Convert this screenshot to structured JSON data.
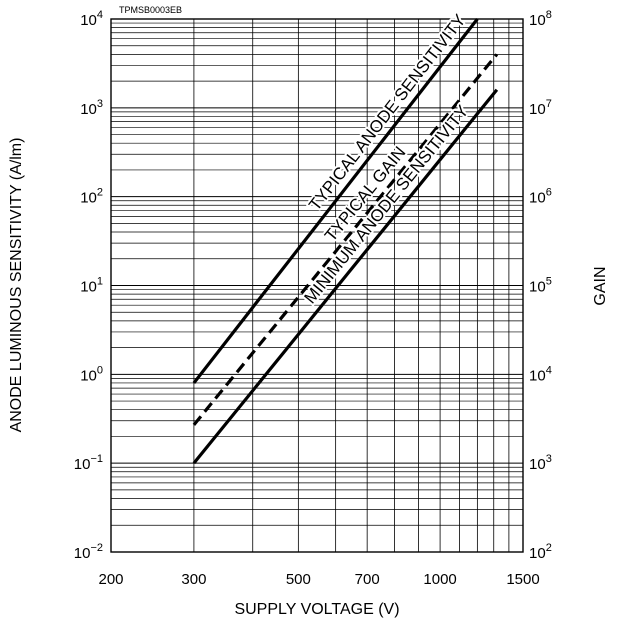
{
  "chart_data": {
    "type": "line",
    "code": "TPMSB0003EB",
    "xlabel": "SUPPLY VOLTAGE (V)",
    "ylabel_left": "ANODE LUMINOUS SENSITIVITY (A/lm)",
    "ylabel_right": "GAIN",
    "x_scale": "log",
    "y_scale": "log",
    "xlim": [
      200,
      1500
    ],
    "ylim_left": [
      0.01,
      10000
    ],
    "ylim_right": [
      100,
      100000000
    ],
    "grid": true,
    "x_ticks": [
      {
        "value": 200,
        "label": "200"
      },
      {
        "value": 300,
        "label": "300"
      },
      {
        "value": 500,
        "label": "500"
      },
      {
        "value": 700,
        "label": "700"
      },
      {
        "value": 1000,
        "label": "1000"
      },
      {
        "value": 1500,
        "label": "1500"
      }
    ],
    "x_grid": [
      200,
      300,
      400,
      500,
      600,
      700,
      800,
      900,
      1000,
      1100,
      1200,
      1300,
      1400,
      1500
    ],
    "y_left_ticks": [
      {
        "value": 0.01,
        "base": "10",
        "exp": "−2"
      },
      {
        "value": 0.1,
        "base": "10",
        "exp": "−1"
      },
      {
        "value": 1,
        "base": "10",
        "exp": "0"
      },
      {
        "value": 10,
        "base": "10",
        "exp": "1"
      },
      {
        "value": 100,
        "base": "10",
        "exp": "2"
      },
      {
        "value": 1000,
        "base": "10",
        "exp": "3"
      },
      {
        "value": 10000,
        "base": "10",
        "exp": "4"
      }
    ],
    "y_right_ticks": [
      {
        "value": 100,
        "base": "10",
        "exp": "2"
      },
      {
        "value": 1000,
        "base": "10",
        "exp": "3"
      },
      {
        "value": 10000,
        "base": "10",
        "exp": "4"
      },
      {
        "value": 100000,
        "base": "10",
        "exp": "5"
      },
      {
        "value": 1000000,
        "base": "10",
        "exp": "6"
      },
      {
        "value": 10000000,
        "base": "10",
        "exp": "7"
      },
      {
        "value": 100000000,
        "base": "10",
        "exp": "8"
      }
    ],
    "series": [
      {
        "name": "TYPICAL ANODE SENSITIVITY",
        "axis": "left",
        "style": "solid",
        "x": [
          300,
          1200
        ],
        "y": [
          0.8,
          10000
        ]
      },
      {
        "name": "TYPICAL GAIN",
        "axis": "right",
        "style": "dashed",
        "x": [
          300,
          1320
        ],
        "y": [
          2700,
          40000000
        ]
      },
      {
        "name": "MINIMUM ANODE SENSITIVITY",
        "axis": "left",
        "style": "solid",
        "x": [
          300,
          1320
        ],
        "y": [
          0.1,
          1600
        ]
      }
    ]
  }
}
